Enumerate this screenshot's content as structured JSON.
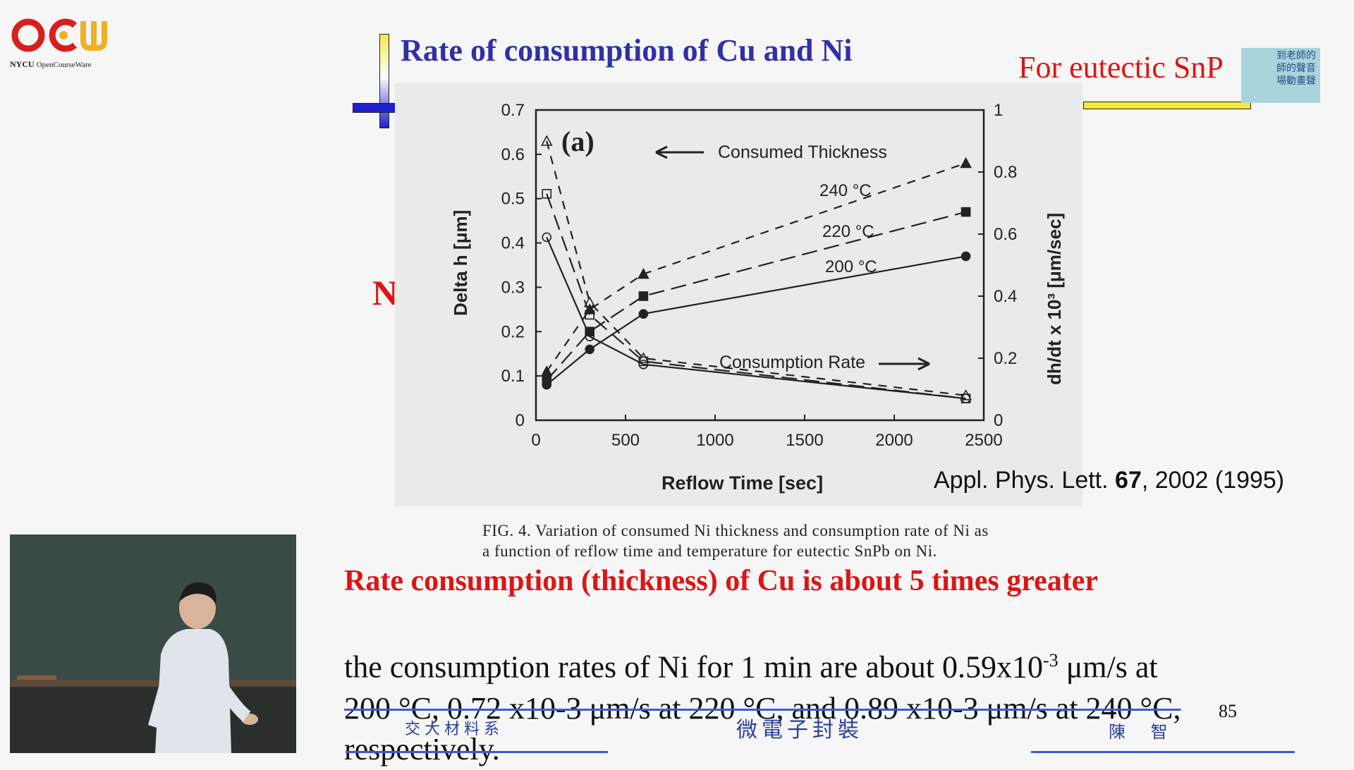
{
  "logo": {
    "mark": "OCW",
    "org": "NYCU",
    "org_sub": "OpenCourseWare"
  },
  "slide": {
    "title": "Rate of consumption of Cu  and Ni",
    "subtitle": "For eutectic SnP",
    "stamp_text": [
      "到老師的",
      "師的聲音",
      "場動畫聲"
    ],
    "side_label": "Ni",
    "citation": {
      "journal": "Appl. Phys. Lett.",
      "volume": "67",
      "rest": ", 2002 (1995)"
    },
    "caption_lines": [
      "FIG. 4.  Variation of consumed Ni thickness and consumption rate of Ni as",
      "a function of reflow time and temperature for eutectic SnPb on Ni."
    ],
    "red_statement": "Rate consumption (thickness) of Cu  is about 5 times greater",
    "body": {
      "line1_a": "the consumption rates of Ni for 1 min are about 0.59x10",
      "line1_sup": "-3",
      "line1_b": " μm/s at",
      "line2": "200 °C, 0.72 x10-3 μm/s at 220 °C, and 0.89 x10-3 μm/s at 240 °C,",
      "line3": "respectively."
    },
    "page_number": "85"
  },
  "footer": {
    "left": "交大材料系",
    "center": "微電子封裝",
    "right": "陳 智"
  },
  "colors": {
    "title_blue": "#3030a8",
    "accent_red": "#dd1515",
    "footer_blue": "#2b3f9c"
  },
  "chart_data": {
    "type": "line",
    "panel_label": "(a)",
    "xlabel": "Reflow  Time  [sec]",
    "ylabel_left": "Delta  h  [μm]",
    "ylabel_right": "dh/dt  x  10³  [μm/sec]",
    "xlim": [
      0,
      2500
    ],
    "ylim_left": [
      0,
      0.7
    ],
    "ylim_right": [
      0,
      1
    ],
    "x_ticks": [
      0,
      500,
      1000,
      1500,
      2000,
      2500
    ],
    "y_left_ticks": [
      0,
      0.1,
      0.2,
      0.3,
      0.4,
      0.5,
      0.6,
      0.7
    ],
    "y_right_ticks": [
      0,
      0.2,
      0.4,
      0.6,
      0.8,
      1
    ],
    "annotations": [
      "Consumed Thickness",
      "Consumption Rate",
      "240 °C",
      "220 °C",
      "200 °C"
    ],
    "series": [
      {
        "name": "240 °C",
        "group": "thickness",
        "axis": "left",
        "style": "short-dash",
        "x": [
          60,
          300,
          600,
          2400
        ],
        "y": [
          0.11,
          0.25,
          0.33,
          0.58
        ]
      },
      {
        "name": "220 °C",
        "group": "thickness",
        "axis": "left",
        "style": "long-dash",
        "x": [
          60,
          300,
          600,
          2400
        ],
        "y": [
          0.09,
          0.2,
          0.28,
          0.47
        ]
      },
      {
        "name": "200 °C",
        "group": "thickness",
        "axis": "left",
        "style": "solid",
        "x": [
          60,
          300,
          600,
          2400
        ],
        "y": [
          0.08,
          0.16,
          0.24,
          0.37
        ]
      },
      {
        "name": "240 °C",
        "group": "rate",
        "axis": "right",
        "style": "short-dash",
        "x": [
          60,
          300,
          600,
          2400
        ],
        "y": [
          0.9,
          0.38,
          0.2,
          0.08
        ]
      },
      {
        "name": "220 °C",
        "group": "rate",
        "axis": "right",
        "style": "long-dash",
        "x": [
          60,
          300,
          600,
          2400
        ],
        "y": [
          0.73,
          0.34,
          0.19,
          0.07
        ]
      },
      {
        "name": "200 °C",
        "group": "rate",
        "axis": "right",
        "style": "solid",
        "x": [
          60,
          300,
          600,
          2400
        ],
        "y": [
          0.59,
          0.27,
          0.18,
          0.07
        ]
      }
    ],
    "grid": false,
    "legend": "none"
  }
}
